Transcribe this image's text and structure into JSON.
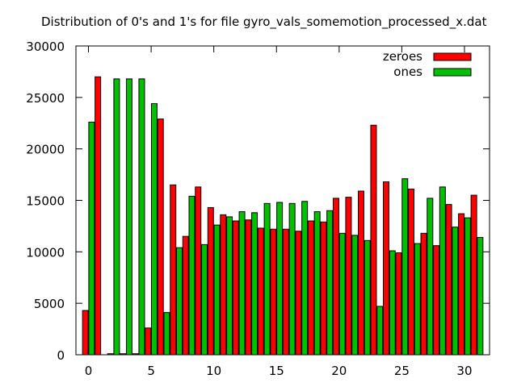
{
  "chart_data": {
    "type": "bar",
    "title": "Distribution of 0's and 1's for file gyro_vals_somemotion_processed_x.dat",
    "xlabel": "",
    "ylabel": "",
    "xlim": [
      -1,
      32
    ],
    "ylim": [
      0,
      30000
    ],
    "x_ticks": [
      0,
      5,
      10,
      15,
      20,
      25,
      30
    ],
    "y_ticks": [
      0,
      5000,
      10000,
      15000,
      20000,
      25000,
      30000
    ],
    "grid": false,
    "legend_position": "top-right",
    "categories": [
      0,
      1,
      2,
      3,
      4,
      5,
      6,
      7,
      8,
      9,
      10,
      11,
      12,
      13,
      14,
      15,
      16,
      17,
      18,
      19,
      20,
      21,
      22,
      23,
      24,
      25,
      26,
      27,
      28,
      29,
      30,
      31
    ],
    "series": [
      {
        "name": "zeroes",
        "color": "#ff0000",
        "values": [
          4300,
          27000,
          100,
          100,
          100,
          2600,
          22900,
          16500,
          11500,
          16300,
          14300,
          13600,
          13000,
          13100,
          12300,
          12200,
          12200,
          12000,
          13000,
          12900,
          15200,
          15300,
          15900,
          22300,
          16800,
          9900,
          16100,
          11800,
          10600,
          14600,
          13700,
          15500
        ]
      },
      {
        "name": "ones",
        "color": "#00c000",
        "values": [
          22600,
          0,
          26800,
          26800,
          26800,
          24400,
          4100,
          10400,
          15400,
          10700,
          12600,
          13400,
          13900,
          13800,
          14700,
          14800,
          14700,
          14900,
          13900,
          14000,
          11800,
          11600,
          11100,
          4700,
          10100,
          17100,
          10800,
          15200,
          16300,
          12400,
          13300,
          11400
        ]
      }
    ]
  }
}
